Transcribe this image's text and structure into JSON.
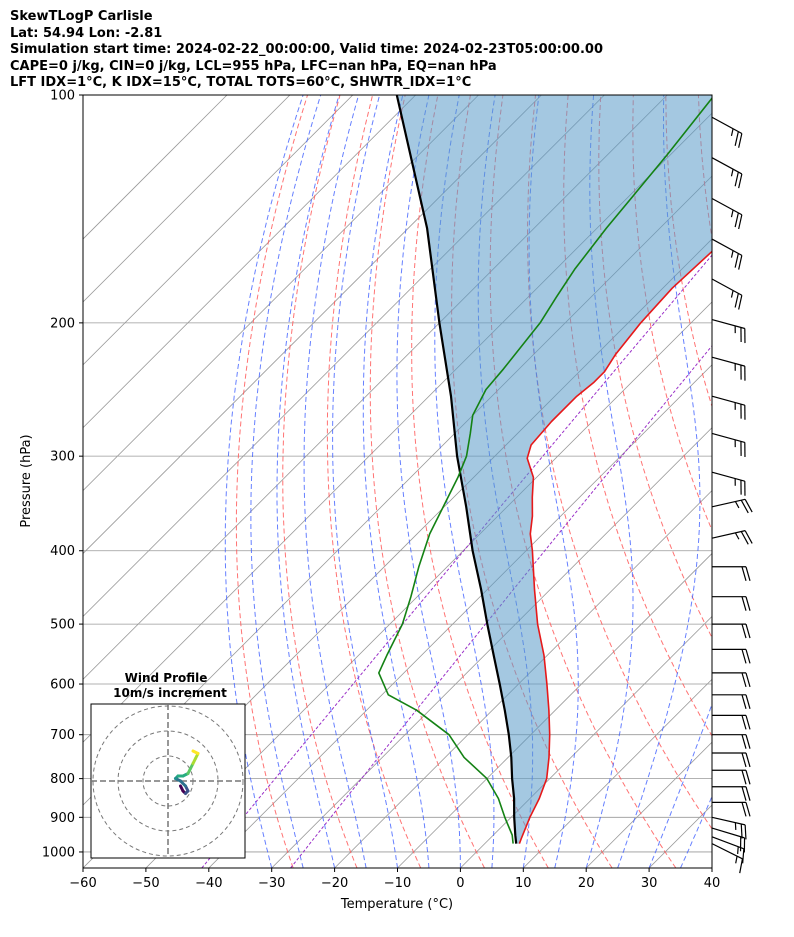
{
  "header": {
    "line1": "SkewTLogP Carlisle",
    "line2": "Lat: 54.94   Lon: -2.81",
    "line3": "Simulation start time: 2024-02-22_00:00:00, Valid time: 2024-02-23T05:00:00.00",
    "line4": "CAPE=0 j/kg, CIN=0 j/kg, LCL=955 hPa, LFC=nan hPa, EQ=nan hPa",
    "line5": "LFT IDX=1$^\\circ$C, K IDX=15$^\\circ$C, TOTAL TOTS=60$^\\circ$C, SHWTR_IDX=1$^\\circ$C"
  },
  "chart_data": {
    "type": "line",
    "subtype": "skew-T log-P",
    "xlabel": "Temperature ($^\\circ$C)",
    "ylabel": "Pressure (hPa)",
    "xlim": [
      -60,
      40
    ],
    "ylim": [
      1050,
      100
    ],
    "yscale": "log",
    "grid": true,
    "x_ticks": [
      "−60",
      "−50",
      "−40",
      "−30",
      "−20",
      "−10",
      "0",
      "10",
      "20",
      "30",
      "40"
    ],
    "x_tick_values": [
      -60,
      -50,
      -40,
      -30,
      -20,
      -10,
      0,
      10,
      20,
      30,
      40
    ],
    "y_ticks": [
      "100",
      "200",
      "300",
      "400",
      "500",
      "600",
      "700",
      "800",
      "900",
      "1000"
    ],
    "y_tick_values": [
      100,
      200,
      300,
      400,
      500,
      600,
      700,
      800,
      900,
      1000
    ],
    "colors": {
      "temperature": "#e6191a",
      "dewpoint": "#148214",
      "parcel": "#000000",
      "cin_fill": "#5a9ac8",
      "dry_adiabat": "#ff5a5a",
      "moist_adiabat": "#4060ff",
      "mixing_ratio": "#9a30c8",
      "isotherm": "#999999"
    },
    "series": [
      {
        "key": "temperature",
        "pressure": [
          975,
          960,
          900,
          850,
          800,
          750,
          700,
          650,
          600,
          550,
          500,
          450,
          400,
          380,
          360,
          340,
          320,
          302,
          290,
          270,
          250,
          240,
          232,
          220,
          200,
          180,
          160,
          150,
          140,
          120,
          110,
          100
        ],
        "values": [
          5.5,
          5.0,
          3.0,
          1.5,
          -0.5,
          -3.5,
          -7.0,
          -11.0,
          -15.5,
          -20.5,
          -26.5,
          -32.5,
          -39.0,
          -42.0,
          -44.5,
          -47.5,
          -50.5,
          -54.5,
          -56.0,
          -56.5,
          -56.5,
          -56.0,
          -56.0,
          -57.0,
          -58.0,
          -58.5,
          -58.0,
          -57.5,
          -55.5,
          -55.0,
          -56.5,
          -58.0
        ]
      },
      {
        "key": "dewpoint",
        "pressure": [
          975,
          950,
          900,
          850,
          800,
          750,
          700,
          650,
          620,
          580,
          550,
          500,
          460,
          420,
          380,
          320,
          300,
          280,
          265,
          245,
          230,
          200,
          185,
          170,
          150,
          120,
          100
        ],
        "values": [
          4.5,
          3.0,
          -1.0,
          -5.0,
          -10.0,
          -17.0,
          -23.0,
          -32.0,
          -39.0,
          -44.0,
          -45.5,
          -48.0,
          -51.0,
          -54.5,
          -58.0,
          -62.5,
          -64.5,
          -67.5,
          -70.0,
          -72.0,
          -72.5,
          -74.0,
          -75.5,
          -77.0,
          -78.5,
          -80.5,
          -82.5
        ]
      },
      {
        "key": "parcel",
        "pressure": [
          975,
          950,
          900,
          850,
          800,
          750,
          700,
          650,
          600,
          550,
          500,
          450,
          400,
          350,
          300,
          250,
          200,
          150,
          100
        ],
        "values": [
          5.0,
          3.5,
          0.5,
          -2.5,
          -6.0,
          -9.5,
          -13.5,
          -18.0,
          -23.0,
          -28.5,
          -34.5,
          -41.0,
          -48.5,
          -56.5,
          -66.0,
          -76.5,
          -90.0,
          -107.0,
          -133.0
        ]
      }
    ],
    "wind_barbs": {
      "speed_unit": "kt",
      "pressure": [
        975,
        955,
        930,
        900,
        860,
        820,
        780,
        740,
        700,
        660,
        620,
        580,
        540,
        500,
        460,
        420,
        385,
        350,
        315,
        280,
        250,
        222,
        198,
        175,
        155,
        137,
        121,
        107
      ],
      "u": [
        -12,
        -16,
        -20,
        -22,
        -22,
        -22,
        -22,
        -22,
        -22,
        -22,
        -22,
        -22,
        -22,
        -22,
        -22,
        -22,
        -22,
        -22,
        -22,
        -22,
        -22,
        -22,
        -22,
        -22,
        -22,
        -22,
        -22,
        -22
      ],
      "v": [
        6,
        6,
        6,
        5,
        0,
        0,
        0,
        0,
        0,
        0,
        0,
        0,
        0,
        0,
        0,
        0,
        -5,
        -5,
        6,
        6,
        6,
        6,
        6,
        12,
        12,
        12,
        12,
        12
      ]
    },
    "inset": {
      "title": "Wind Profile",
      "subtitle": "10m/s increment",
      "hodograph_u": [
        5,
        6,
        7,
        8,
        7,
        5,
        3,
        4,
        6,
        8,
        9,
        10,
        11,
        12,
        10
      ],
      "hodograph_v": [
        -2,
        -4,
        -5,
        -4,
        -2,
        0,
        1,
        2,
        2,
        3,
        5,
        7,
        9,
        11,
        12
      ]
    }
  }
}
